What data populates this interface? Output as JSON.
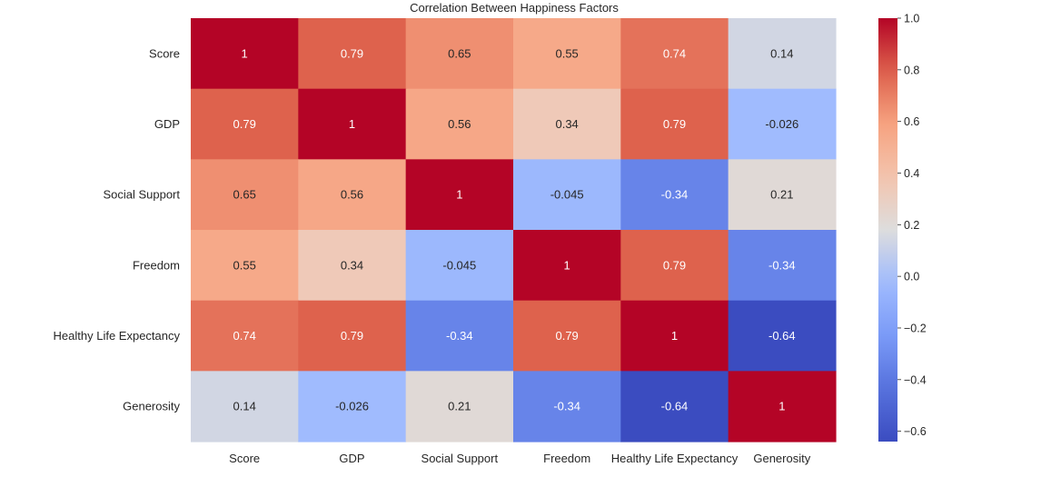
{
  "chart_data": {
    "type": "heatmap",
    "title": "Correlation Between Happiness Factors",
    "xlabel": "",
    "ylabel": "",
    "row_labels": [
      "Score",
      "GDP",
      "Social Support",
      "Freedom",
      "Healthy Life Expectancy",
      "Generosity"
    ],
    "col_labels": [
      "Score",
      "GDP",
      "Social Support",
      "Freedom",
      "Healthy Life Expectancy",
      "Generosity"
    ],
    "values": [
      [
        1,
        0.79,
        0.65,
        0.55,
        0.74,
        0.14
      ],
      [
        0.79,
        1,
        0.56,
        0.34,
        0.79,
        -0.026
      ],
      [
        0.65,
        0.56,
        1,
        -0.045,
        -0.34,
        0.21
      ],
      [
        0.55,
        0.34,
        -0.045,
        1,
        0.79,
        -0.34
      ],
      [
        0.74,
        0.79,
        -0.34,
        0.79,
        1,
        -0.64
      ],
      [
        0.14,
        -0.026,
        0.21,
        -0.34,
        -0.64,
        1
      ]
    ],
    "colormap": "coolwarm",
    "vmin": -0.64,
    "vmax": 1.0,
    "colorbar_ticks": [
      1.0,
      0.8,
      0.6,
      0.4,
      0.2,
      0.0,
      -0.2,
      -0.4,
      -0.6
    ],
    "colorbar_tick_labels": [
      "1.0",
      "0.8",
      "0.6",
      "0.4",
      "0.2",
      "0.0",
      "−0.2",
      "−0.4",
      "−0.6"
    ],
    "annotate": true,
    "grid": false
  }
}
